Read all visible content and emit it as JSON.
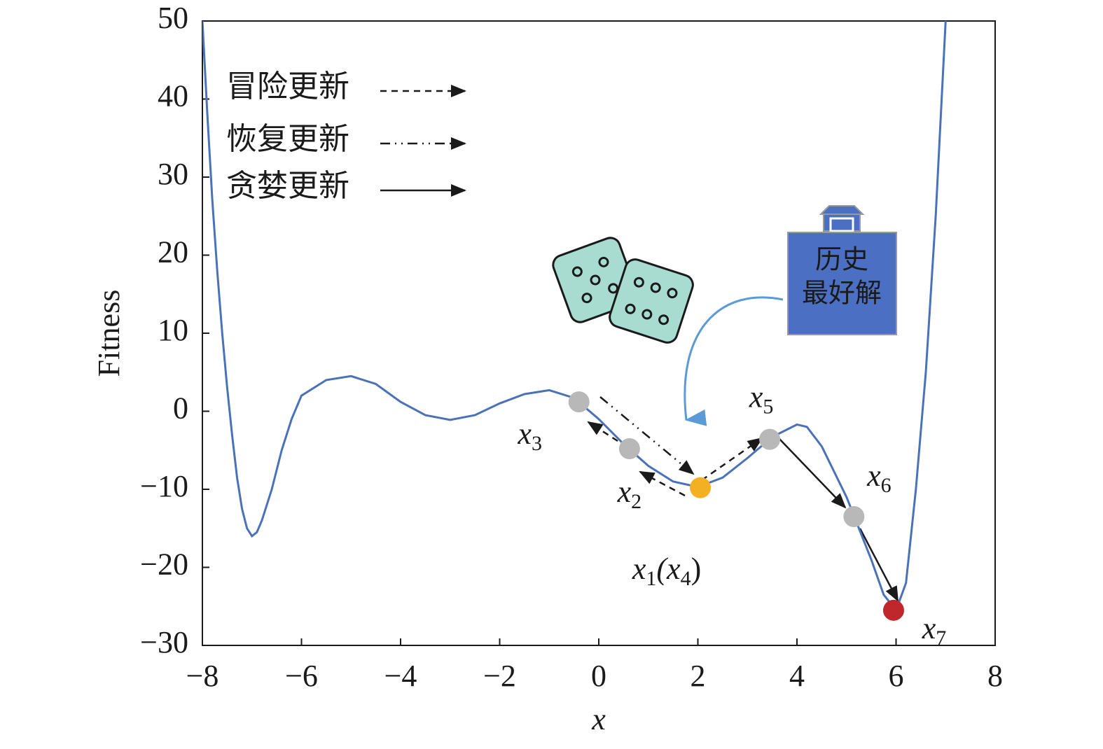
{
  "chart_data": {
    "type": "line",
    "x_label": "x",
    "y_label": "Fitness",
    "xlim": [
      -8,
      8
    ],
    "ylim": [
      -30,
      50
    ],
    "xticks": [
      {
        "value": -8,
        "label": "−8"
      },
      {
        "value": -6,
        "label": "−6"
      },
      {
        "value": -4,
        "label": "−4"
      },
      {
        "value": -2,
        "label": "−2"
      },
      0,
      2,
      4,
      6,
      8
    ],
    "yticks": [
      {
        "value": -30,
        "label": "−30"
      },
      {
        "value": -20,
        "label": "−20"
      },
      {
        "value": -10,
        "label": "−10"
      },
      0,
      10,
      20,
      30,
      40,
      50
    ],
    "x": [
      -8,
      -7.9,
      -7.8,
      -7.7,
      -7.6,
      -7.5,
      -7.4,
      -7.3,
      -7.2,
      -7.1,
      -7,
      -6.9,
      -6.8,
      -6.6,
      -6.4,
      -6.2,
      -6,
      -5.5,
      -5,
      -4.5,
      -4,
      -3.5,
      -3,
      -2.5,
      -2,
      -1.5,
      -1,
      -0.5,
      0,
      0.5,
      1,
      1.5,
      2,
      2.5,
      3,
      3.5,
      4,
      4.2,
      4.5,
      5,
      5.5,
      5.75,
      6,
      6.2,
      6.4,
      6.6,
      6.8,
      7
    ],
    "series": [
      {
        "color": "#4a72b8",
        "values": [
          50,
          38,
          27,
          18,
          10,
          3,
          -3,
          -8.5,
          -12.5,
          -15,
          -16,
          -15.5,
          -14,
          -10,
          -5,
          -1,
          2,
          4,
          4.5,
          3.5,
          1.2,
          -0.5,
          -1.1,
          -0.5,
          1,
          2.2,
          2.7,
          1.7,
          -1,
          -4.2,
          -7,
          -9,
          -9.7,
          -8.5,
          -6,
          -3.3,
          -1.7,
          -2,
          -4.5,
          -11,
          -19,
          -23.5,
          -25.5,
          -22,
          -10,
          5,
          25,
          50
        ]
      }
    ],
    "points": [
      {
        "label": "x3",
        "x": -0.4,
        "y": 1.2,
        "color": "#b8b8b8"
      },
      {
        "label": "x2",
        "x": 0.62,
        "y": -4.8,
        "color": "#b8b8b8"
      },
      {
        "label": "x1(x4)",
        "x": 2.05,
        "y": -9.8,
        "color": "#f4b023"
      },
      {
        "label": "x5",
        "x": 3.45,
        "y": -3.6,
        "color": "#b8b8b8"
      },
      {
        "label": "x6",
        "x": 5.15,
        "y": -13.5,
        "color": "#b8b8b8"
      },
      {
        "label": "x7",
        "x": 5.95,
        "y": -25.5,
        "color": "#c0272d"
      }
    ],
    "legend": [
      {
        "name": "冒险更新",
        "style": "dashed"
      },
      {
        "name": "恢复更新",
        "style": "dashdot"
      },
      {
        "name": "贪婪更新",
        "style": "solid"
      }
    ],
    "callout": [
      "历史",
      "最好解"
    ]
  }
}
